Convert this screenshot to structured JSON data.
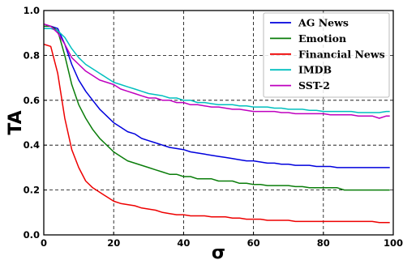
{
  "chart_data": {
    "type": "line",
    "title": "",
    "xlabel": "σ",
    "ylabel": "TA",
    "xlim": [
      0,
      100
    ],
    "ylim": [
      0.0,
      1.0
    ],
    "xticks": [
      "0",
      "20",
      "40",
      "60",
      "80",
      "100"
    ],
    "yticks": [
      "0.0",
      "0.2",
      "0.4",
      "0.6",
      "0.8",
      "1.0"
    ],
    "grid": true,
    "grid_style": "dashed",
    "legend_position": "top-right",
    "x": [
      0,
      2,
      4,
      6,
      8,
      10,
      12,
      14,
      16,
      18,
      20,
      22,
      24,
      26,
      28,
      30,
      32,
      34,
      36,
      38,
      40,
      42,
      44,
      46,
      48,
      50,
      52,
      54,
      56,
      58,
      60,
      62,
      64,
      66,
      68,
      70,
      72,
      74,
      76,
      78,
      80,
      82,
      84,
      86,
      88,
      90,
      92,
      94,
      96,
      98,
      99
    ],
    "series": [
      {
        "name": "AG News",
        "color": "#0000dd",
        "values": [
          0.93,
          0.93,
          0.92,
          0.85,
          0.76,
          0.69,
          0.64,
          0.6,
          0.56,
          0.53,
          0.5,
          0.48,
          0.46,
          0.45,
          0.43,
          0.42,
          0.41,
          0.4,
          0.39,
          0.385,
          0.38,
          0.37,
          0.365,
          0.36,
          0.355,
          0.35,
          0.345,
          0.34,
          0.335,
          0.33,
          0.33,
          0.325,
          0.32,
          0.32,
          0.315,
          0.315,
          0.31,
          0.31,
          0.31,
          0.305,
          0.305,
          0.305,
          0.3,
          0.3,
          0.3,
          0.3,
          0.3,
          0.3,
          0.3,
          0.3,
          0.3
        ]
      },
      {
        "name": "Emotion",
        "color": "#0a7d0a",
        "values": [
          0.93,
          0.93,
          0.91,
          0.8,
          0.67,
          0.58,
          0.52,
          0.47,
          0.43,
          0.4,
          0.37,
          0.35,
          0.33,
          0.32,
          0.31,
          0.3,
          0.29,
          0.28,
          0.27,
          0.27,
          0.26,
          0.26,
          0.25,
          0.25,
          0.25,
          0.24,
          0.24,
          0.24,
          0.23,
          0.23,
          0.225,
          0.225,
          0.22,
          0.22,
          0.22,
          0.22,
          0.215,
          0.215,
          0.21,
          0.21,
          0.21,
          0.21,
          0.21,
          0.2,
          0.2,
          0.2,
          0.2,
          0.2,
          0.2,
          0.2,
          0.2
        ]
      },
      {
        "name": "Financial News",
        "color": "#ee0000",
        "values": [
          0.85,
          0.84,
          0.72,
          0.52,
          0.38,
          0.3,
          0.24,
          0.21,
          0.19,
          0.17,
          0.15,
          0.14,
          0.135,
          0.13,
          0.12,
          0.115,
          0.11,
          0.1,
          0.095,
          0.09,
          0.09,
          0.085,
          0.085,
          0.085,
          0.08,
          0.08,
          0.08,
          0.075,
          0.075,
          0.07,
          0.07,
          0.07,
          0.065,
          0.065,
          0.065,
          0.065,
          0.06,
          0.06,
          0.06,
          0.06,
          0.06,
          0.06,
          0.06,
          0.06,
          0.06,
          0.06,
          0.06,
          0.06,
          0.055,
          0.055,
          0.055
        ]
      },
      {
        "name": "IMDB",
        "color": "#00bfbf",
        "values": [
          0.92,
          0.92,
          0.91,
          0.88,
          0.83,
          0.79,
          0.76,
          0.74,
          0.72,
          0.7,
          0.68,
          0.67,
          0.66,
          0.65,
          0.64,
          0.63,
          0.625,
          0.62,
          0.61,
          0.61,
          0.6,
          0.6,
          0.59,
          0.59,
          0.585,
          0.58,
          0.58,
          0.58,
          0.575,
          0.575,
          0.57,
          0.57,
          0.57,
          0.565,
          0.565,
          0.56,
          0.56,
          0.56,
          0.555,
          0.555,
          0.55,
          0.55,
          0.55,
          0.55,
          0.55,
          0.545,
          0.545,
          0.545,
          0.545,
          0.55,
          0.55
        ]
      },
      {
        "name": "SST-2",
        "color": "#bf00bf",
        "values": [
          0.94,
          0.93,
          0.9,
          0.85,
          0.79,
          0.76,
          0.73,
          0.71,
          0.69,
          0.68,
          0.67,
          0.65,
          0.64,
          0.63,
          0.62,
          0.61,
          0.61,
          0.6,
          0.6,
          0.59,
          0.59,
          0.58,
          0.58,
          0.575,
          0.57,
          0.57,
          0.565,
          0.56,
          0.56,
          0.555,
          0.55,
          0.55,
          0.55,
          0.55,
          0.545,
          0.545,
          0.54,
          0.54,
          0.54,
          0.54,
          0.54,
          0.535,
          0.535,
          0.535,
          0.535,
          0.53,
          0.53,
          0.53,
          0.52,
          0.53,
          0.53
        ]
      }
    ]
  }
}
